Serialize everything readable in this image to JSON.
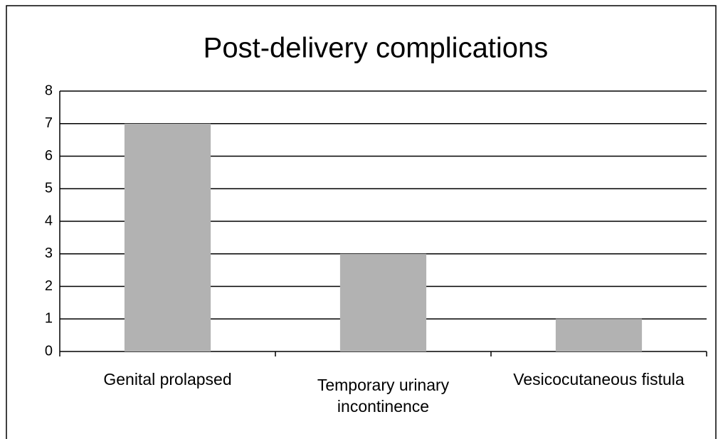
{
  "chart_data": {
    "type": "bar",
    "title": "Post-delivery complications",
    "categories": [
      "Genital prolapsed",
      "Temporary urinary incontinence",
      "Vesicocutaneous fistula"
    ],
    "values": [
      7,
      3,
      1
    ],
    "color": "#b2b2b2",
    "ylim": [
      0,
      8
    ],
    "yticks": [
      0,
      1,
      2,
      3,
      4,
      5,
      6,
      7,
      8
    ],
    "grid": true
  }
}
